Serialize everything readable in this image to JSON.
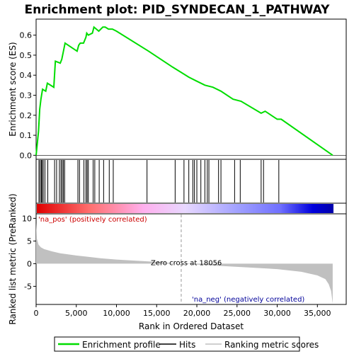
{
  "chart_data": {
    "type": "line",
    "title": "Enrichment plot: PID_SYNDECAN_1_PATHWAY",
    "xlabel": "Rank in Ordered Dataset",
    "ylabel_top": "Enrichment score (ES)",
    "ylabel_bottom": "Ranked list metric (PreRanked)",
    "xlim": [
      0,
      37000
    ],
    "es_ylim": [
      -0.02,
      0.68
    ],
    "es_yticks": [
      "0.0",
      "0.1",
      "0.2",
      "0.3",
      "0.4",
      "0.5",
      "0.6"
    ],
    "metric_ylim": [
      -9,
      11
    ],
    "metric_yticks": [
      "-5",
      "0",
      "5",
      "10"
    ],
    "xticks": [
      "0",
      "5,000",
      "10,000",
      "15,000",
      "20,000",
      "25,000",
      "30,000",
      "35,000"
    ],
    "series": [
      {
        "name": "Enrichment profile",
        "color": "#00dd00",
        "x": [
          0,
          150,
          300,
          450,
          600,
          800,
          1200,
          1400,
          2200,
          2400,
          3000,
          3200,
          3400,
          3600,
          5100,
          5300,
          5500,
          5900,
          6200,
          6300,
          6500,
          7000,
          7200,
          7500,
          7800,
          8300,
          8600,
          9000,
          9500,
          10000,
          14000,
          17000,
          19000,
          20000,
          21000,
          22000,
          23000,
          24500,
          25500,
          28000,
          28500,
          30000,
          30500,
          36900
        ],
        "y": [
          0.0,
          0.06,
          0.12,
          0.23,
          0.28,
          0.33,
          0.32,
          0.36,
          0.34,
          0.47,
          0.46,
          0.48,
          0.52,
          0.56,
          0.52,
          0.55,
          0.56,
          0.56,
          0.59,
          0.61,
          0.6,
          0.61,
          0.64,
          0.63,
          0.62,
          0.64,
          0.64,
          0.63,
          0.63,
          0.62,
          0.52,
          0.44,
          0.39,
          0.37,
          0.35,
          0.34,
          0.32,
          0.28,
          0.27,
          0.21,
          0.22,
          0.18,
          0.18,
          0.0
        ]
      }
    ],
    "hits": [
      350,
      500,
      650,
      750,
      900,
      1100,
      1450,
      2300,
      2550,
      2900,
      3100,
      3250,
      3400,
      3550,
      5200,
      5400,
      5950,
      6200,
      6350,
      6500,
      7100,
      7300,
      7850,
      8400,
      9100,
      9600,
      13800,
      17300,
      18400,
      19000,
      19500,
      19700,
      20000,
      20500,
      21000,
      21300,
      21500,
      22700,
      23000,
      24700,
      25400,
      28000,
      28300,
      30200
    ],
    "metric_profile": {
      "x": [
        0,
        100,
        300,
        600,
        1000,
        2000,
        3000,
        5000,
        8000,
        10000,
        14000,
        18056,
        22000,
        26000,
        30000,
        33000,
        35000,
        36000,
        36400,
        36700,
        36900
      ],
      "y": [
        9.0,
        5.5,
        4.2,
        3.6,
        3.2,
        2.7,
        2.3,
        1.8,
        1.2,
        0.9,
        0.5,
        0.0,
        -0.4,
        -0.8,
        -1.2,
        -1.8,
        -2.6,
        -3.4,
        -4.5,
        -6.0,
        -8.8
      ]
    },
    "zero_cross": {
      "x": 18056,
      "label": "Zero cross at 18056"
    },
    "pos_label": "'na_pos' (positively correlated)",
    "neg_label": "'na_neg' (negatively correlated)",
    "legend": [
      {
        "label": "Enrichment profile",
        "color": "#00dd00"
      },
      {
        "label": "Hits",
        "color": "#000000"
      },
      {
        "label": "Ranking metric scores",
        "color": "#c0c0c0"
      }
    ],
    "colors": {
      "pos_label": "#cc0000",
      "neg_label": "#000099",
      "metric_fill": "#c0c0c0",
      "gradient": [
        "#e00000",
        "#ff8080",
        "#ffc0ff",
        "#d0d0ff",
        "#8080ff",
        "#0000cc"
      ]
    }
  }
}
